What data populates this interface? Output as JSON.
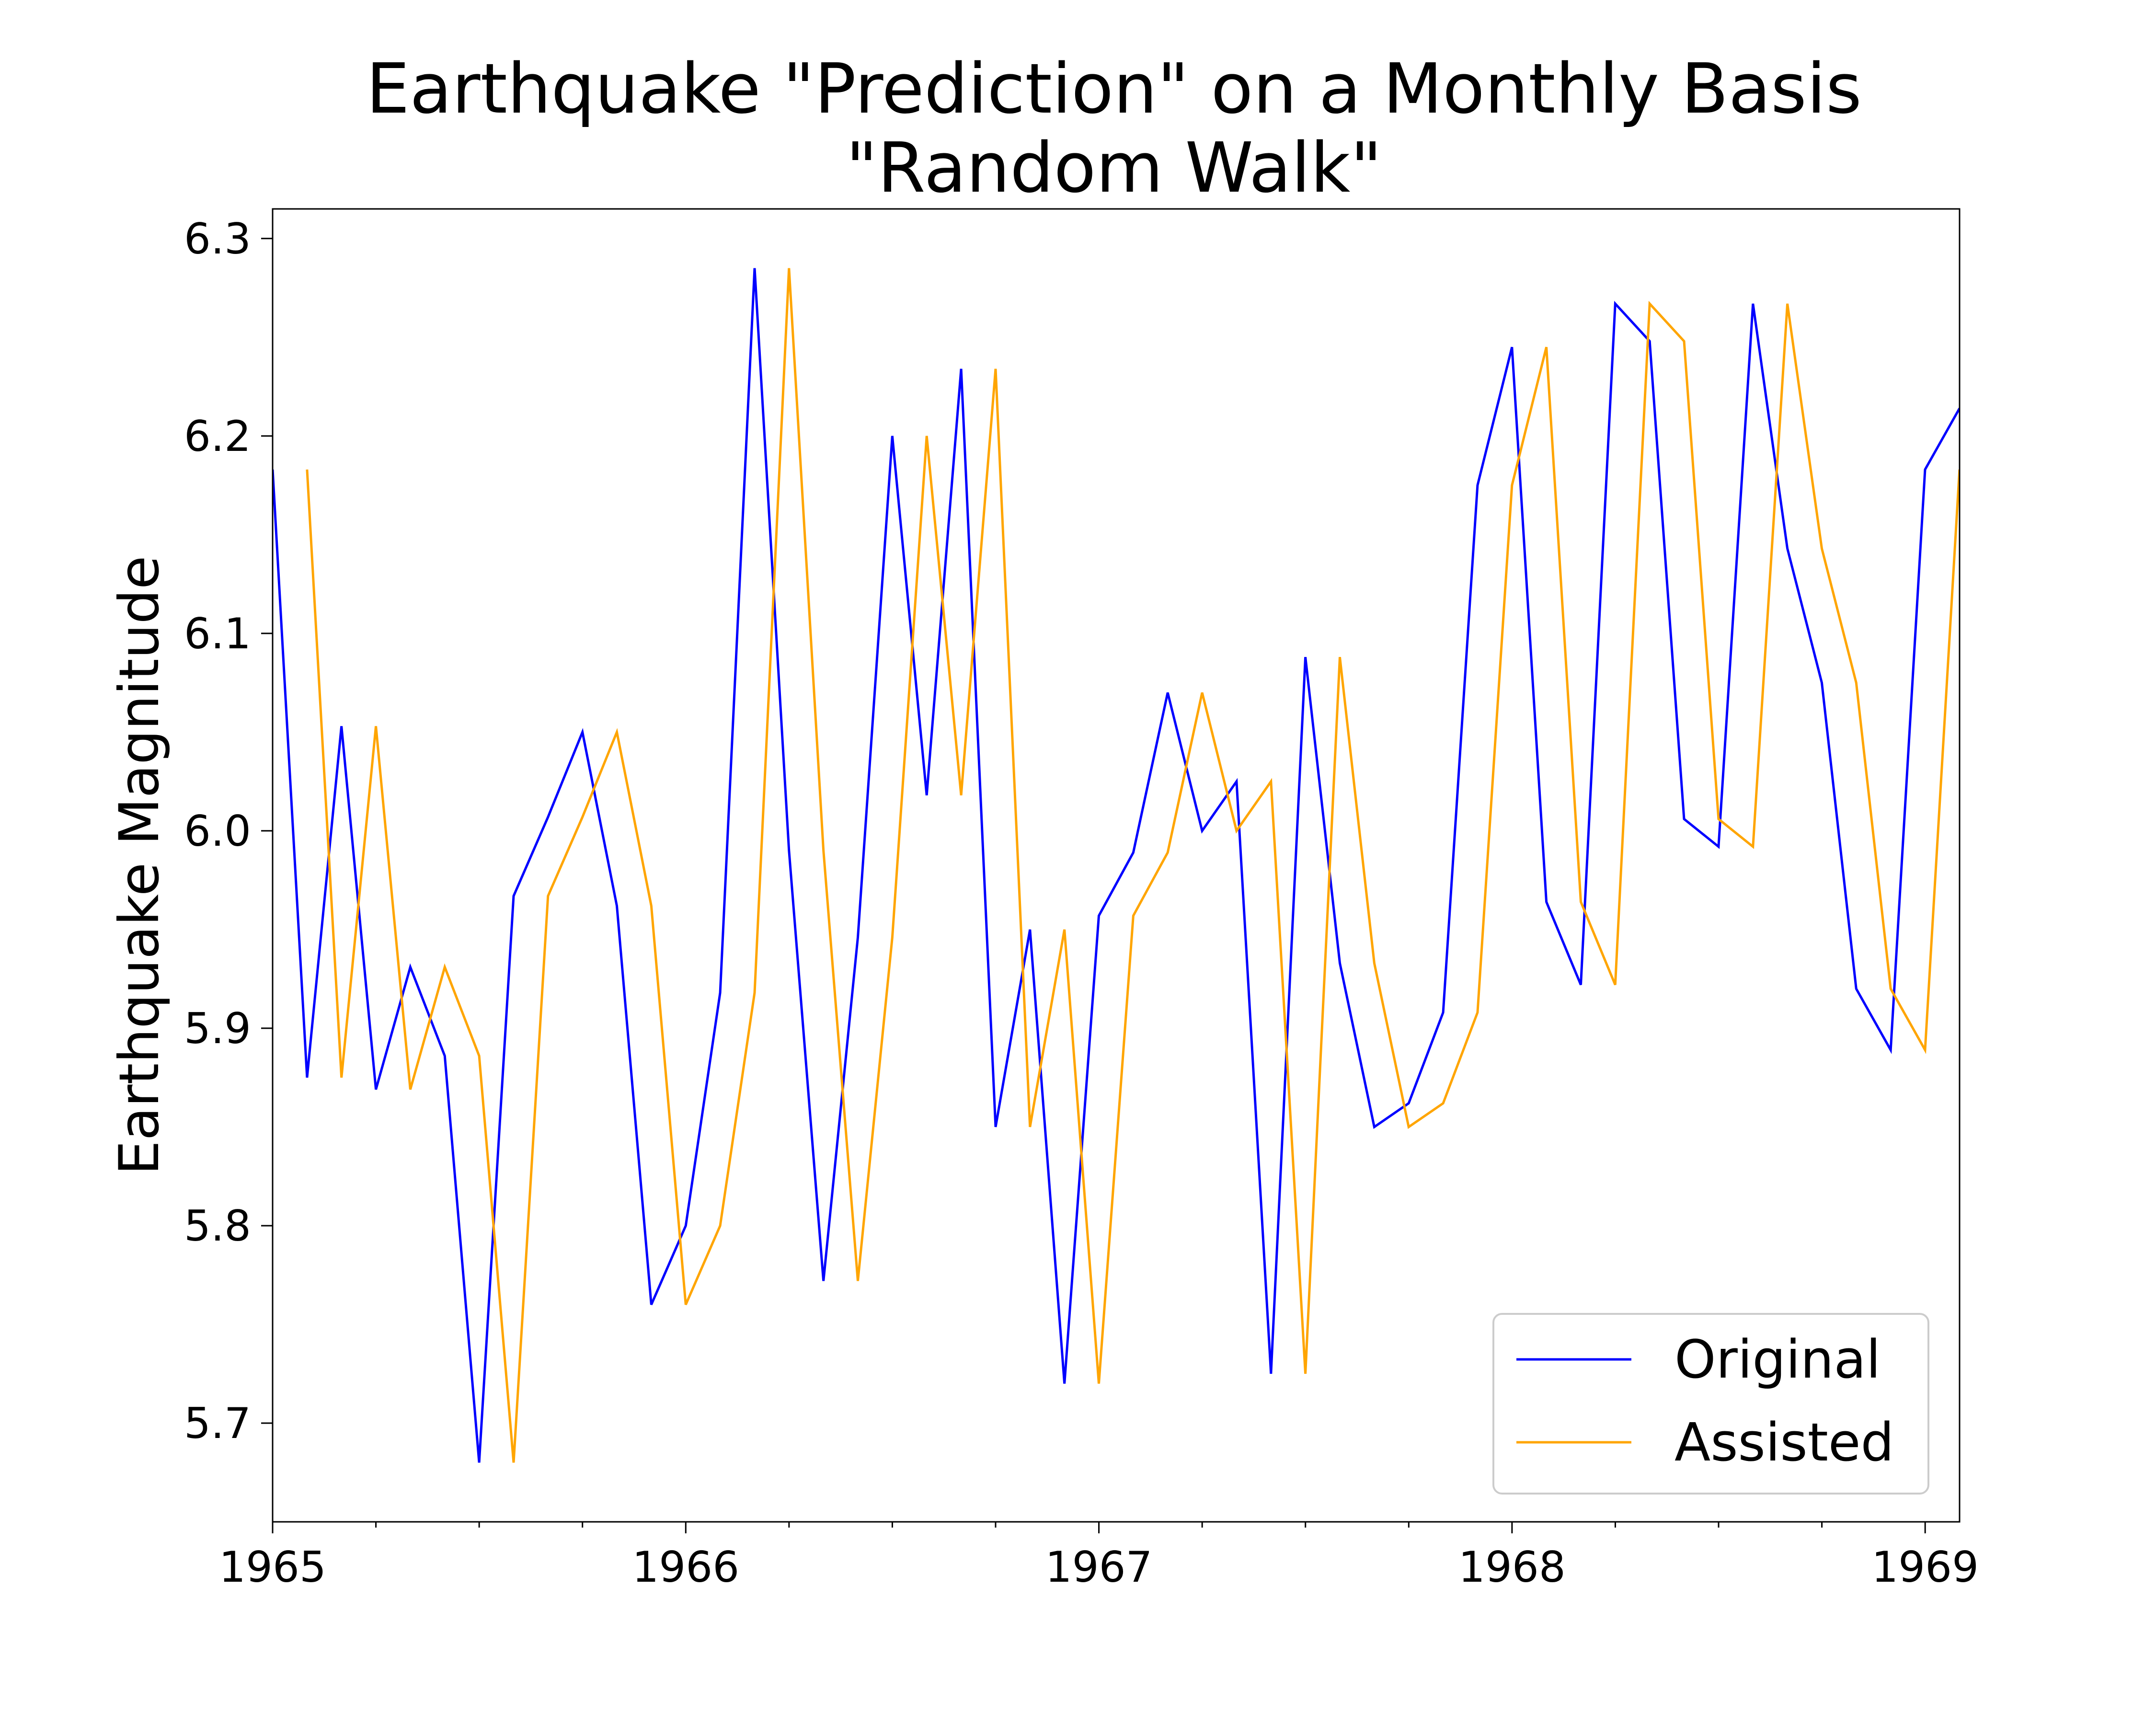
{
  "chart_data": {
    "type": "line",
    "title_line1": "Earthquake \"Prediction\" on a Monthly Basis",
    "title_line2": "\"Random Walk\"",
    "xlabel": "",
    "ylabel": "Earthquake Magnitude",
    "xlim": [
      1965.0,
      1969.0833
    ],
    "ylim": [
      5.65,
      6.315
    ],
    "x_ticks": [
      1965,
      1966,
      1967,
      1968,
      1969
    ],
    "x_tick_labels": [
      "1965",
      "1966",
      "1967",
      "1968",
      "1969"
    ],
    "y_ticks": [
      5.7,
      5.8,
      5.9,
      6.0,
      6.1,
      6.2,
      6.3
    ],
    "y_tick_labels": [
      "5.7",
      "5.8",
      "5.9",
      "6.0",
      "6.1",
      "6.2",
      "6.3"
    ],
    "x_start": 1965.0,
    "x_step": 0.08333,
    "legend_position": "lower-right",
    "grid": false,
    "series": [
      {
        "name": "Original",
        "color": "#0000ff",
        "values": [
          6.183,
          5.875,
          6.053,
          5.869,
          5.931,
          5.886,
          5.68,
          5.967,
          6.007,
          6.05,
          5.962,
          5.76,
          5.8,
          5.918,
          6.285,
          5.99,
          5.772,
          5.946,
          6.2,
          6.018,
          6.234,
          5.85,
          5.95,
          5.72,
          5.957,
          5.989,
          6.07,
          6.0,
          6.025,
          5.725,
          6.088,
          5.933,
          5.85,
          5.862,
          5.908,
          6.175,
          6.245,
          5.964,
          5.922,
          6.267,
          6.248,
          6.006,
          5.992,
          6.267,
          6.143,
          6.075,
          5.92,
          5.889,
          6.183,
          6.214
        ]
      },
      {
        "name": "Assisted",
        "color": "#ffa500",
        "offset": 1,
        "values": [
          6.183,
          5.875,
          6.053,
          5.869,
          5.931,
          5.886,
          5.68,
          5.967,
          6.007,
          6.05,
          5.962,
          5.76,
          5.8,
          5.918,
          6.285,
          5.99,
          5.772,
          5.946,
          6.2,
          6.018,
          6.234,
          5.85,
          5.95,
          5.72,
          5.957,
          5.989,
          6.07,
          6.0,
          6.025,
          5.725,
          6.088,
          5.933,
          5.85,
          5.862,
          5.908,
          6.175,
          6.245,
          5.964,
          5.922,
          6.267,
          6.248,
          6.006,
          5.992,
          6.267,
          6.143,
          6.075,
          5.92,
          5.889,
          6.183
        ]
      }
    ]
  }
}
